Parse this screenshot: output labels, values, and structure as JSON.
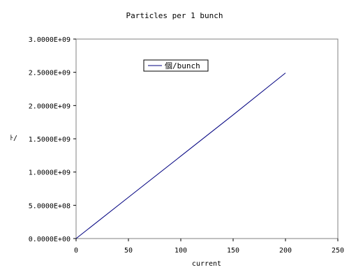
{
  "chart_data": {
    "type": "line",
    "title": "Particles per 1 bunch",
    "xlabel": "current",
    "ylabel": "ﾄ/",
    "xlim": [
      0,
      250
    ],
    "ylim": [
      0,
      3000000000
    ],
    "x_ticks": [
      0,
      50,
      100,
      150,
      200,
      250
    ],
    "x_tick_labels": [
      "0",
      "50",
      "100",
      "150",
      "200",
      "250"
    ],
    "y_ticks": [
      0,
      500000000,
      1000000000,
      1500000000,
      2000000000,
      2500000000,
      3000000000
    ],
    "y_tick_labels": [
      "0.0000E+00",
      "5.0000E+08",
      "1.0000E+09",
      "1.5000E+09",
      "2.0000E+09",
      "2.5000E+09",
      "3.0000E+09"
    ],
    "grid": false,
    "legend_position": "top-center",
    "series": [
      {
        "name": "個/bunch",
        "color": "#000080",
        "x": [
          0,
          50,
          100,
          150,
          200
        ],
        "y": [
          0,
          620000000,
          1240000000,
          1860000000,
          2490000000
        ]
      }
    ]
  }
}
